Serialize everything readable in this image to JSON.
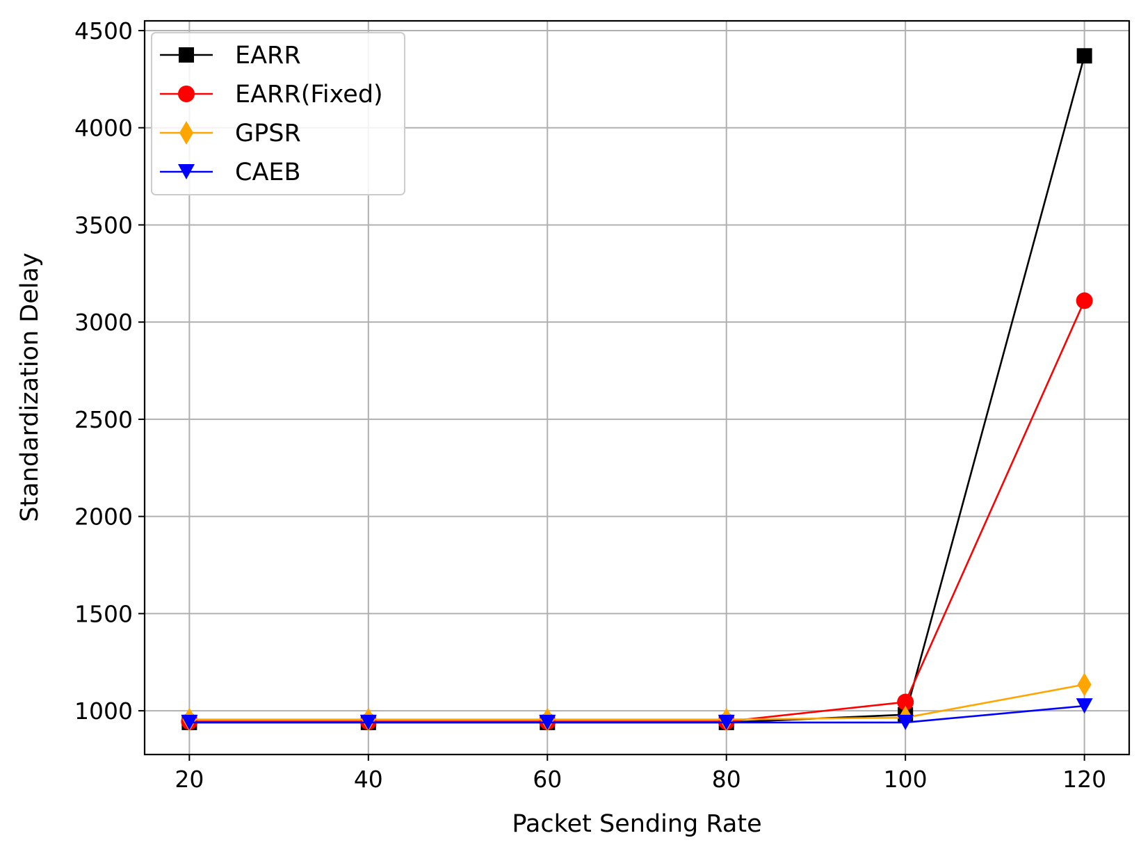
{
  "chart_data": {
    "type": "line",
    "title": "",
    "xlabel": "Packet Sending Rate",
    "ylabel": "Standardization Delay",
    "x": [
      20,
      40,
      60,
      80,
      100,
      120
    ],
    "xlim": [
      15,
      125
    ],
    "ylim": [
      775,
      4550
    ],
    "xticks": [
      20,
      40,
      60,
      80,
      100,
      120
    ],
    "yticks": [
      1000,
      1500,
      2000,
      2500,
      3000,
      3500,
      4000,
      4500
    ],
    "xtick_labels": [
      "20",
      "40",
      "60",
      "80",
      "100",
      "120"
    ],
    "ytick_labels": [
      "1000",
      "1500",
      "2000",
      "2500",
      "3000",
      "3500",
      "4000",
      "4500"
    ],
    "grid": true,
    "legend_position": "upper-left",
    "series": [
      {
        "name": "EARR",
        "color": "#000000",
        "marker": "square",
        "values": [
          940,
          940,
          940,
          940,
          980,
          4370
        ]
      },
      {
        "name": "EARR(Fixed)",
        "color": "#ff0000",
        "marker": "circle",
        "values": [
          945,
          945,
          945,
          945,
          1045,
          3110
        ]
      },
      {
        "name": "GPSR",
        "color": "#ffa500",
        "marker": "diamond",
        "values": [
          955,
          955,
          955,
          955,
          965,
          1135
        ]
      },
      {
        "name": "CAEB",
        "color": "#0000ff",
        "marker": "triangle-down",
        "values": [
          940,
          940,
          940,
          940,
          940,
          1025
        ]
      }
    ]
  }
}
